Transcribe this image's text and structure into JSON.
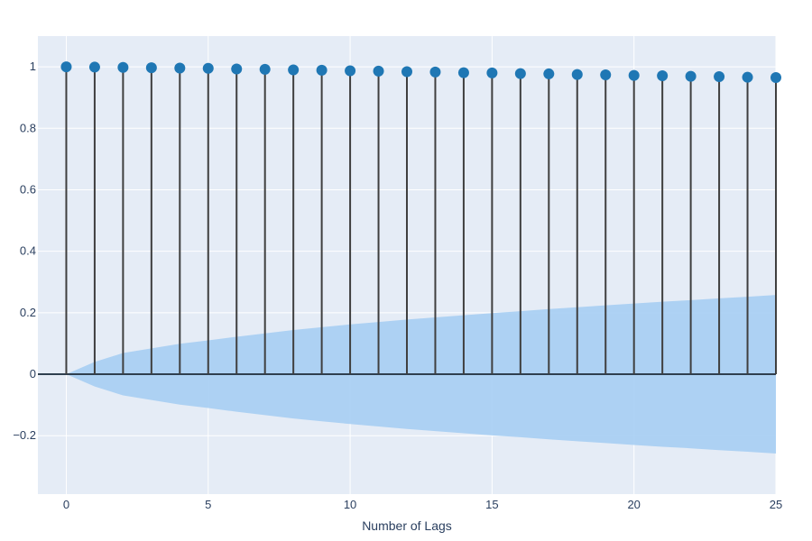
{
  "chart_data": {
    "type": "scatter",
    "subtype": "acf-stem",
    "title": "",
    "xlabel": "Number of Lags",
    "ylabel": "",
    "xlim": [
      -1,
      25
    ],
    "ylim": [
      -0.39,
      1.1
    ],
    "x_ticks": [
      0,
      5,
      10,
      15,
      20,
      25
    ],
    "y_ticks": [
      -0.2,
      0,
      0.2,
      0.4,
      0.6,
      0.8,
      1
    ],
    "y_tick_labels": [
      "−0.2",
      "0",
      "0.2",
      "0.4",
      "0.6",
      "0.8",
      "1"
    ],
    "grid": true,
    "legend": "none",
    "lags": [
      0,
      1,
      2,
      3,
      4,
      5,
      6,
      7,
      8,
      9,
      10,
      11,
      12,
      13,
      14,
      15,
      16,
      17,
      18,
      19,
      20,
      21,
      22,
      23,
      24,
      25
    ],
    "acf": [
      1.0,
      0.999,
      0.998,
      0.997,
      0.996,
      0.995,
      0.993,
      0.992,
      0.99,
      0.989,
      0.987,
      0.986,
      0.984,
      0.983,
      0.981,
      0.98,
      0.978,
      0.977,
      0.975,
      0.974,
      0.972,
      0.971,
      0.969,
      0.968,
      0.966,
      0.965
    ],
    "confidence_upper": [
      0,
      0.04,
      0.069,
      0.084,
      0.099,
      0.11,
      0.122,
      0.133,
      0.144,
      0.153,
      0.162,
      0.17,
      0.178,
      0.185,
      0.192,
      0.199,
      0.205,
      0.212,
      0.218,
      0.224,
      0.23,
      0.236,
      0.241,
      0.247,
      0.252,
      0.258
    ],
    "colors": {
      "plot_bg": "#e5ecf6",
      "grid": "#ffffff",
      "marker": "#1f77b4",
      "stem": "#3f3f3f",
      "confidence_band": "#a6cef3",
      "zero_line": "#2f3f4f",
      "text": "#2a3f5f"
    }
  }
}
